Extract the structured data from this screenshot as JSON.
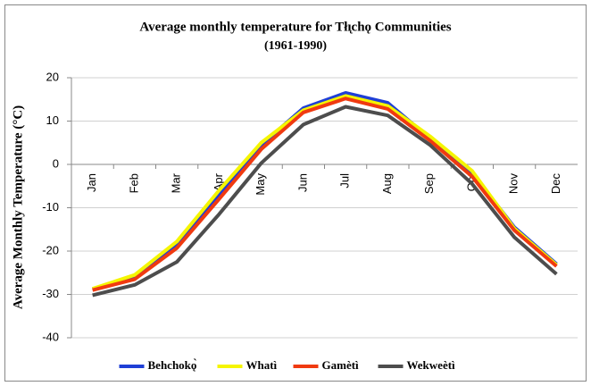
{
  "chart_data": {
    "type": "line",
    "title": "Average monthly temperature for Tłı̨chǫ Communities",
    "subtitle": "(1961-1990)",
    "y_label": "Average Monthly Temperature (°C)",
    "categories": [
      "Jan",
      "Feb",
      "Mar",
      "Apr",
      "May",
      "Jun",
      "Jul",
      "Aug",
      "Sep",
      "Oct",
      "Nov",
      "Dec"
    ],
    "series": [
      {
        "name": "Behchokǫ̀",
        "color": "#1f3fd6",
        "values": [
          -28.8,
          -25.8,
          -18.5,
          -7,
          4.5,
          13,
          16.5,
          14.2,
          6,
          -2,
          -14.5,
          -23
        ]
      },
      {
        "name": "Whatì",
        "color": "#f5f500",
        "values": [
          -28.7,
          -25.5,
          -17.8,
          -6,
          5,
          12.5,
          15.8,
          13.5,
          6.5,
          -1.5,
          -14.8,
          -23.2
        ]
      },
      {
        "name": "Gamètì",
        "color": "#f03a10",
        "values": [
          -29,
          -26.5,
          -19.3,
          -8,
          3.5,
          12,
          15.2,
          12.8,
          5.5,
          -2.8,
          -15.2,
          -23.5
        ]
      },
      {
        "name": "Wekweètì",
        "color": "#4d4d4d",
        "values": [
          -30.2,
          -27.8,
          -22.5,
          -11.5,
          0.3,
          9.2,
          13.3,
          11.3,
          4.5,
          -4.5,
          -16.8,
          -25.3
        ]
      }
    ],
    "ylim": [
      -40,
      20
    ],
    "yticks": [
      -40,
      -30,
      -20,
      -10,
      0,
      10,
      20
    ],
    "grid": true,
    "legend": "bottom"
  }
}
